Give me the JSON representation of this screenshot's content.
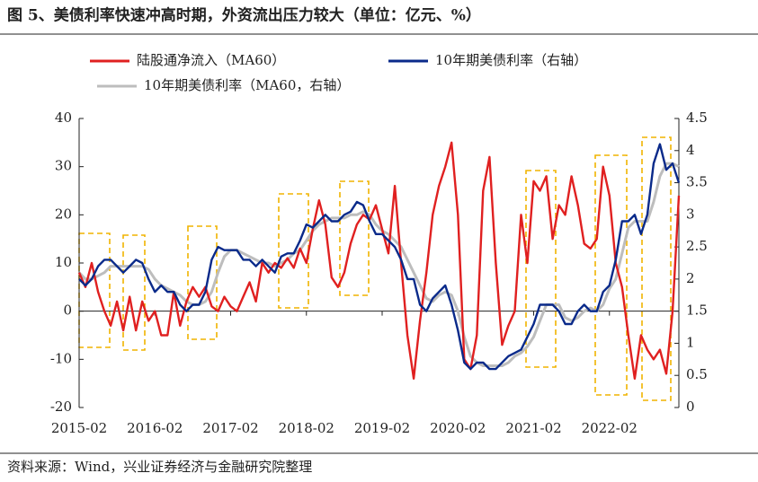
{
  "title": "图 5、美债利率快速冲高时期，外资流出压力较大（单位：亿元、%）",
  "source": "资料来源：Wind，兴业证券经济与金融研究院整理",
  "chart_data": {
    "type": "line",
    "x": [
      "2015-02",
      "2015-03",
      "2015-04",
      "2015-05",
      "2015-06",
      "2015-07",
      "2015-08",
      "2015-09",
      "2015-10",
      "2015-11",
      "2015-12",
      "2016-01",
      "2016-02",
      "2016-03",
      "2016-04",
      "2016-05",
      "2016-06",
      "2016-07",
      "2016-08",
      "2016-09",
      "2016-10",
      "2016-11",
      "2016-12",
      "2017-01",
      "2017-02",
      "2017-03",
      "2017-04",
      "2017-05",
      "2017-06",
      "2017-07",
      "2017-08",
      "2017-09",
      "2017-10",
      "2017-11",
      "2017-12",
      "2018-01",
      "2018-02",
      "2018-03",
      "2018-04",
      "2018-05",
      "2018-06",
      "2018-07",
      "2018-08",
      "2018-09",
      "2018-10",
      "2018-11",
      "2018-12",
      "2019-01",
      "2019-02",
      "2019-03",
      "2019-04",
      "2019-05",
      "2019-06",
      "2019-07",
      "2019-08",
      "2019-09",
      "2019-10",
      "2019-11",
      "2019-12",
      "2020-01",
      "2020-02",
      "2020-03",
      "2020-04",
      "2020-05",
      "2020-06",
      "2020-07",
      "2020-08",
      "2020-09",
      "2020-10",
      "2020-11",
      "2020-12",
      "2021-01",
      "2021-02",
      "2021-03",
      "2021-04",
      "2021-05",
      "2021-06",
      "2021-07",
      "2021-08",
      "2021-09",
      "2021-10",
      "2021-11",
      "2021-12",
      "2022-01",
      "2022-02",
      "2022-03",
      "2022-04",
      "2022-05",
      "2022-06",
      "2022-07",
      "2022-08",
      "2022-09",
      "2022-10",
      "2022-11",
      "2022-12",
      "2023-01"
    ],
    "xticks": [
      "2015-02",
      "2016-02",
      "2017-02",
      "2018-02",
      "2019-02",
      "2020-02",
      "2021-02",
      "2022-02"
    ],
    "ylim": [
      -20,
      40
    ],
    "yticks": [
      -20,
      -10,
      0,
      10,
      20,
      30,
      40
    ],
    "y2lim": [
      0,
      4.5
    ],
    "y2ticks": [
      0,
      0.5,
      1,
      1.5,
      2,
      2.5,
      3,
      3.5,
      4,
      4.5
    ],
    "series": [
      {
        "name": "陆股通净流入（MA60）",
        "color": "#e02020",
        "values": [
          8,
          5,
          10,
          4,
          0,
          -3,
          2,
          -4,
          3,
          -4,
          2,
          -2,
          0,
          -5,
          -5,
          4,
          -3,
          2,
          5,
          3,
          5,
          1,
          0,
          3,
          1,
          0,
          3,
          6,
          2,
          10,
          8,
          10,
          9,
          11,
          9,
          13,
          10,
          17,
          23,
          18,
          7,
          5,
          8,
          14,
          18,
          20,
          19,
          22,
          17,
          12,
          26,
          10,
          -5,
          -14,
          -2,
          8,
          20,
          26,
          30,
          35,
          20,
          -10,
          -12,
          -5,
          25,
          32,
          10,
          -7,
          -3,
          0,
          20,
          10,
          27,
          25,
          28,
          15,
          22,
          20,
          28,
          22,
          14,
          13,
          15,
          30,
          24,
          10,
          5,
          -5,
          -14,
          -5,
          -8,
          -10,
          -8,
          -13,
          0,
          24
        ]
      },
      {
        "name": "10年期美债利率（右轴）",
        "color": "#0a2a8a",
        "axis": "y2",
        "values": [
          2.0,
          1.9,
          2.0,
          2.2,
          2.3,
          2.3,
          2.2,
          2.1,
          2.2,
          2.3,
          2.25,
          2.0,
          1.8,
          1.9,
          1.8,
          1.8,
          1.6,
          1.5,
          1.6,
          1.6,
          1.8,
          2.3,
          2.5,
          2.45,
          2.45,
          2.45,
          2.3,
          2.3,
          2.2,
          2.3,
          2.2,
          2.1,
          2.35,
          2.4,
          2.4,
          2.6,
          2.85,
          2.8,
          2.9,
          3.0,
          2.9,
          2.9,
          3.0,
          3.05,
          3.2,
          3.15,
          2.9,
          2.7,
          2.7,
          2.6,
          2.5,
          2.3,
          2.0,
          2.0,
          1.6,
          1.5,
          1.7,
          1.8,
          1.9,
          1.6,
          1.2,
          0.7,
          0.6,
          0.7,
          0.7,
          0.6,
          0.6,
          0.7,
          0.8,
          0.85,
          0.9,
          1.1,
          1.3,
          1.6,
          1.6,
          1.6,
          1.5,
          1.3,
          1.3,
          1.5,
          1.6,
          1.5,
          1.5,
          1.8,
          1.9,
          2.3,
          2.9,
          2.9,
          3.0,
          2.7,
          3.0,
          3.8,
          4.1,
          3.7,
          3.8,
          3.5
        ]
      },
      {
        "name": "10年期美债利率（MA60，右轴）",
        "color": "#bdbdbd",
        "axis": "y2",
        "values": [
          2.1,
          2.0,
          2.0,
          2.05,
          2.1,
          2.2,
          2.2,
          2.2,
          2.2,
          2.2,
          2.2,
          2.15,
          2.0,
          1.9,
          1.85,
          1.8,
          1.75,
          1.65,
          1.6,
          1.6,
          1.65,
          1.8,
          2.1,
          2.35,
          2.45,
          2.45,
          2.4,
          2.35,
          2.3,
          2.25,
          2.25,
          2.2,
          2.25,
          2.3,
          2.4,
          2.45,
          2.6,
          2.75,
          2.85,
          2.9,
          2.95,
          2.95,
          2.95,
          3.0,
          3.0,
          3.05,
          3.0,
          2.85,
          2.75,
          2.7,
          2.6,
          2.5,
          2.3,
          2.1,
          1.9,
          1.7,
          1.65,
          1.75,
          1.8,
          1.75,
          1.5,
          1.1,
          0.8,
          0.7,
          0.65,
          0.65,
          0.65,
          0.65,
          0.7,
          0.8,
          0.85,
          0.95,
          1.1,
          1.35,
          1.6,
          1.6,
          1.6,
          1.4,
          1.35,
          1.4,
          1.5,
          1.55,
          1.5,
          1.6,
          1.85,
          2.0,
          2.4,
          2.8,
          2.9,
          2.9,
          2.9,
          3.2,
          3.6,
          3.8,
          3.8,
          3.75
        ]
      }
    ]
  }
}
